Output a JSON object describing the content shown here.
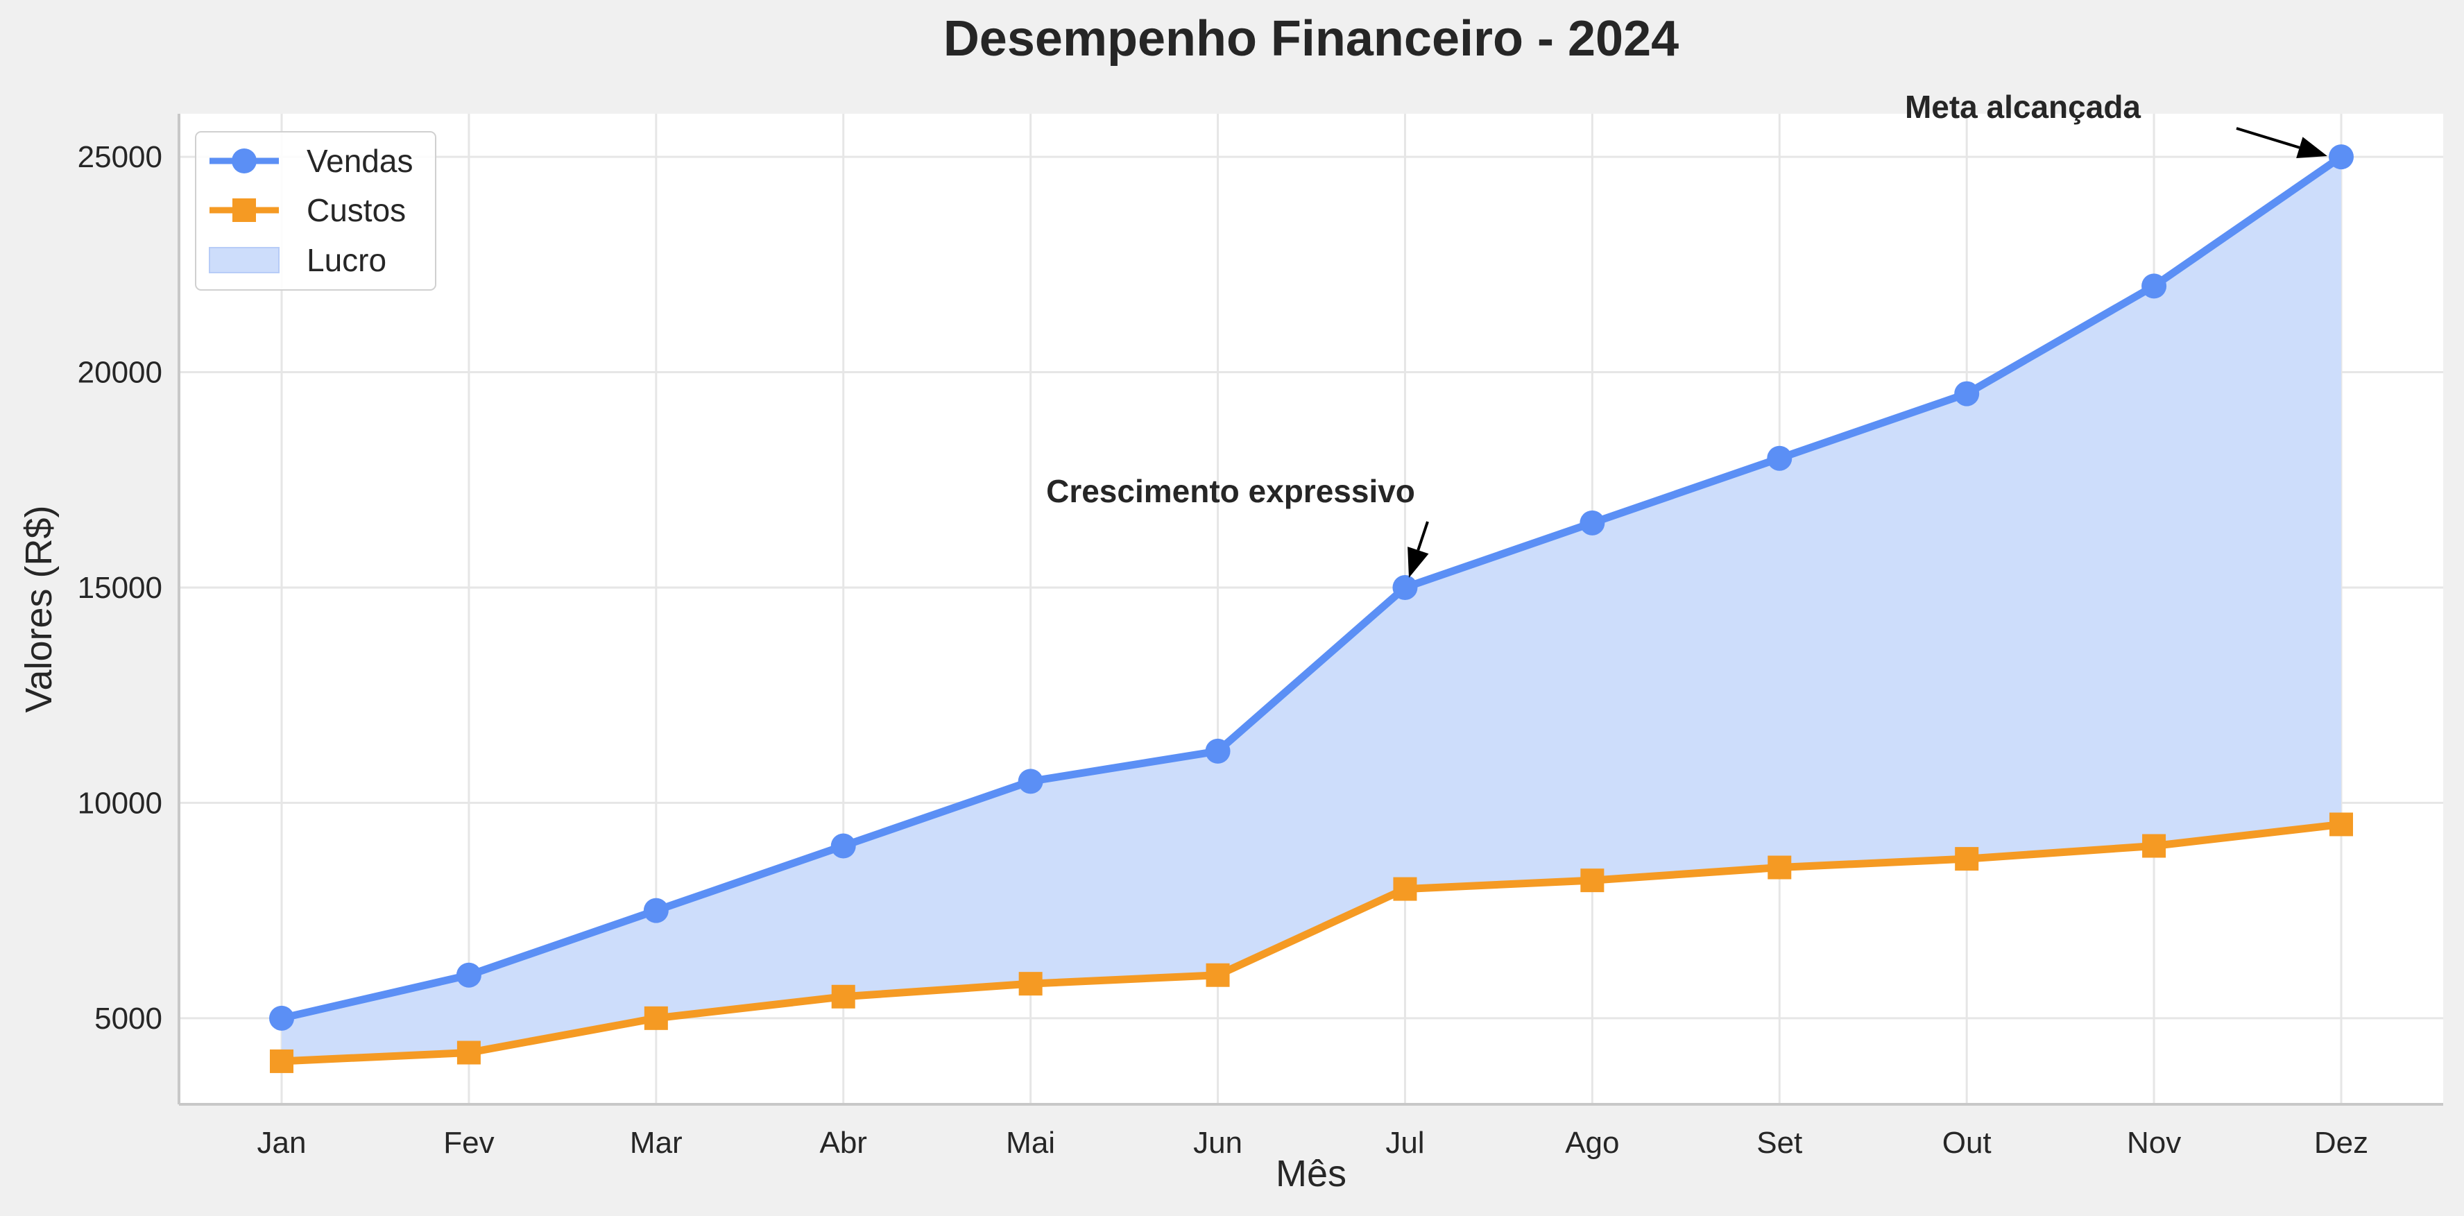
{
  "chart_data": {
    "type": "line",
    "title": "Desempenho Financeiro - 2024",
    "xlabel": "Mês",
    "ylabel": "Valores (R$)",
    "categories": [
      "Jan",
      "Fev",
      "Mar",
      "Abr",
      "Mai",
      "Jun",
      "Jul",
      "Ago",
      "Set",
      "Out",
      "Nov",
      "Dez"
    ],
    "ylim": [
      3000,
      26000
    ],
    "yticks": [
      5000,
      10000,
      15000,
      20000,
      25000
    ],
    "grid": true,
    "legend_position": "top-left",
    "series": [
      {
        "name": "Vendas",
        "values": [
          5000,
          6000,
          7500,
          9000,
          10500,
          11200,
          15000,
          16500,
          18000,
          19500,
          22000,
          25000
        ],
        "color": "#5b8ff5",
        "marker": "circle"
      },
      {
        "name": "Custos",
        "values": [
          4000,
          4200,
          5000,
          5500,
          5800,
          6000,
          8000,
          8200,
          8500,
          8700,
          9000,
          9500
        ],
        "color": "#f59a23",
        "marker": "square"
      }
    ],
    "fill_between": {
      "name": "Lucro",
      "color": "#cdddfb",
      "upper": "Vendas",
      "lower": "Custos"
    },
    "annotations": [
      {
        "text": "Crescimento expressivo",
        "category": "Jul",
        "value": 15000
      },
      {
        "text": "Meta alcançada",
        "category": "Dez",
        "value": 25000
      }
    ]
  }
}
